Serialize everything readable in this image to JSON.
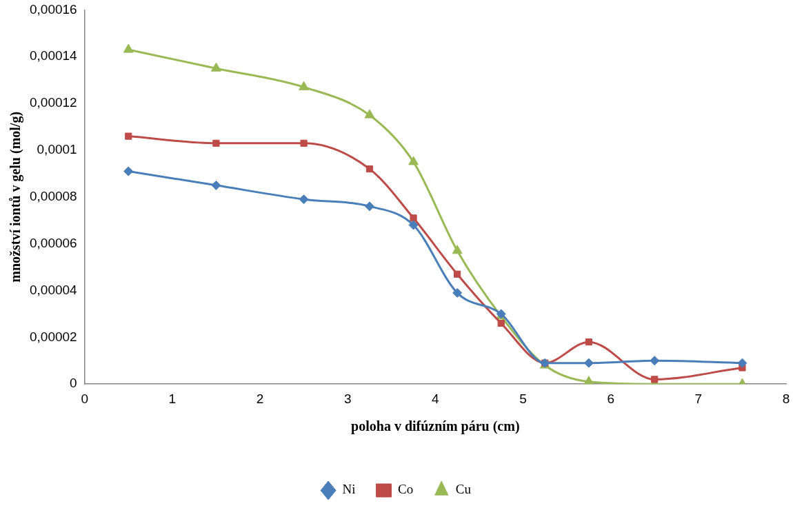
{
  "chart_data": {
    "type": "line",
    "xlabel": "poloha v difúzním páru (cm)",
    "ylabel": "množství iontů v gelu (mol/g)",
    "x": [
      0.5,
      1.5,
      2.5,
      3.25,
      3.75,
      4.25,
      4.75,
      5.25,
      5.75,
      6.5,
      7.5
    ],
    "series": [
      {
        "name": "Ni",
        "color": "#4a7ebb",
        "marker": "diamond",
        "values": [
          9.1e-05,
          8.5e-05,
          7.9e-05,
          7.6e-05,
          6.8e-05,
          3.9e-05,
          3e-05,
          9e-06,
          9e-06,
          1e-05,
          9e-06
        ]
      },
      {
        "name": "Co",
        "color": "#be4b48",
        "marker": "square",
        "values": [
          0.000106,
          0.000103,
          0.000103,
          9.2e-05,
          7.1e-05,
          4.7e-05,
          2.6e-05,
          9e-06,
          1.8e-05,
          2e-06,
          7e-06
        ]
      },
      {
        "name": "Cu",
        "color": "#98b954",
        "marker": "triangle",
        "values": [
          0.000143,
          0.000135,
          0.000127,
          0.000115,
          9.5e-05,
          5.7e-05,
          2.9e-05,
          8e-06,
          1e-06,
          0,
          0
        ]
      }
    ],
    "xlim": [
      0,
      8
    ],
    "xticks": [
      0,
      1,
      2,
      3,
      4,
      5,
      6,
      7,
      8
    ],
    "ylim": [
      0,
      0.00016
    ],
    "yticks": [
      {
        "value": 0,
        "label": "0"
      },
      {
        "value": 2e-05,
        "label": "0,00002"
      },
      {
        "value": 4e-05,
        "label": "0,00004"
      },
      {
        "value": 6e-05,
        "label": "0,00006"
      },
      {
        "value": 8e-05,
        "label": "0,00008"
      },
      {
        "value": 0.0001,
        "label": "0,0001"
      },
      {
        "value": 0.00012,
        "label": "0,00012"
      },
      {
        "value": 0.00014,
        "label": "0,00014"
      },
      {
        "value": 0.00016,
        "label": "0,00016"
      }
    ],
    "grid": false,
    "legend": "bottom",
    "line_style": "solid"
  }
}
